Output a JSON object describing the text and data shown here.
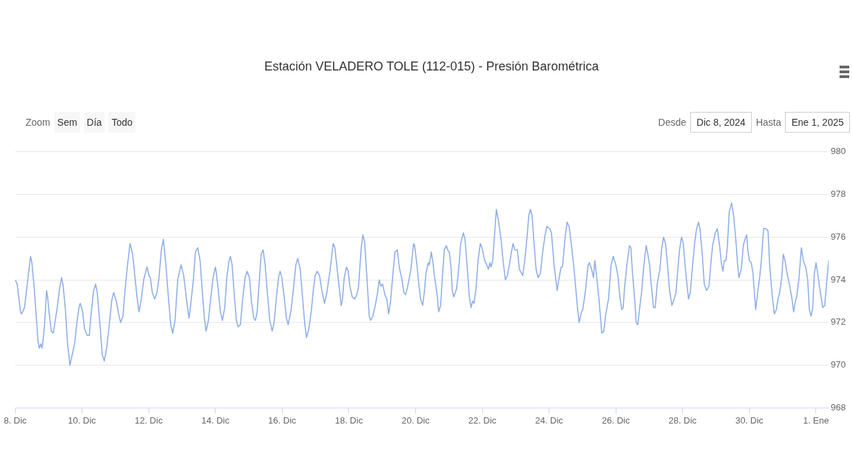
{
  "chart_data": {
    "type": "line",
    "title": "Estación VELADERO TOLE (112-015) - Presión Barométrica",
    "annotations": [
      "Zoom",
      "Sem",
      "Día",
      "Todo",
      "Desde",
      "Dic 8, 2024",
      "Hasta",
      "Ene 1, 2025"
    ],
    "color": "#8eaee8",
    "marker": "none",
    "grid": "y",
    "xlim": [
      "2024-12-08T00:00",
      "2025-01-01T09:07"
    ],
    "xticks": [
      {
        "value": "2024-12-08",
        "label": "8. Dic"
      },
      {
        "value": "2024-12-10",
        "label": "10. Dic"
      },
      {
        "value": "2024-12-12",
        "label": "12. Dic"
      },
      {
        "value": "2024-12-14",
        "label": "14. Dic"
      },
      {
        "value": "2024-12-16",
        "label": "16. Dic"
      },
      {
        "value": "2024-12-18",
        "label": "18. Dic"
      },
      {
        "value": "2024-12-20",
        "label": "20. Dic"
      },
      {
        "value": "2024-12-22",
        "label": "22. Dic"
      },
      {
        "value": "2024-12-24",
        "label": "24. Dic"
      },
      {
        "value": "2024-12-26",
        "label": "26. Dic"
      },
      {
        "value": "2024-12-28",
        "label": "28. Dic"
      },
      {
        "value": "2024-12-30",
        "label": "30. Dic"
      },
      {
        "value": "2025-01-01",
        "label": "1. Ene"
      }
    ],
    "ylim": [
      968,
      980
    ],
    "yticks": [
      968,
      970,
      972,
      974,
      976,
      978,
      980
    ],
    "x": [
      "2024-12-08T00:00",
      "2024-12-08T01:26",
      "2024-12-08T03:50",
      "2024-12-08T04:34",
      "2024-12-08T06:43",
      "2024-12-08T08:10",
      "2024-12-08T11:02",
      "2024-12-08T12:00",
      "2024-12-08T13:41",
      "2024-12-08T15:22",
      "2024-12-08T16:19",
      "2024-12-08T17:17",
      "2024-12-08T18:29",
      "2024-12-08T19:12",
      "2024-12-08T19:55",
      "2024-12-08T21:07",
      "2024-12-08T22:34",
      "2024-12-08T23:17",
      "2024-12-09T00:29",
      "2024-12-09T01:55",
      "2024-12-09T03:22",
      "2024-12-09T04:34",
      "2024-12-09T06:14",
      "2024-12-09T07:55",
      "2024-12-09T09:22",
      "2024-12-09T10:19",
      "2024-12-09T12:00",
      "2024-12-09T13:41",
      "2024-12-09T15:22",
      "2024-12-09T17:02",
      "2024-12-09T18:43",
      "2024-12-09T20:24",
      "2024-12-09T22:05",
      "2024-12-09T22:48",
      "2024-12-10T00:29",
      "2024-12-10T01:55",
      "2024-12-10T03:36",
      "2024-12-10T05:17",
      "2024-12-10T06:43",
      "2024-12-10T08:24",
      "2024-12-10T09:50",
      "2024-12-10T11:02",
      "2024-12-10T12:58",
      "2024-12-10T14:38",
      "2024-12-10T16:05",
      "2024-12-10T17:46",
      "2024-12-10T19:41",
      "2024-12-10T21:22",
      "2024-12-10T22:48",
      "2024-12-11T00:43",
      "2024-12-11T02:24",
      "2024-12-11T03:50",
      "2024-12-11T05:31",
      "2024-12-11T06:58",
      "2024-12-11T08:38",
      "2024-12-11T10:34",
      "2024-12-11T12:29",
      "2024-12-11T14:10",
      "2024-12-11T15:36",
      "2024-12-11T17:02",
      "2024-12-11T18:43",
      "2024-12-11T20:24",
      "2024-12-11T22:48",
      "2024-12-12T00:14",
      "2024-12-12T01:12",
      "2024-12-12T02:38",
      "2024-12-12T04:19",
      "2024-12-12T06:00",
      "2024-12-12T07:26",
      "2024-12-12T09:07",
      "2024-12-12T10:34",
      "2024-12-12T12:14",
      "2024-12-12T13:55",
      "2024-12-12T15:50",
      "2024-12-12T17:17",
      "2024-12-12T18:58",
      "2024-12-12T20:53",
      "2024-12-12T23:17",
      "2024-12-13T01:12",
      "2024-12-13T03:22",
      "2024-12-13T05:02",
      "2024-12-13T06:29",
      "2024-12-13T08:10",
      "2024-12-13T09:36",
      "2024-12-13T11:17",
      "2024-12-13T12:58",
      "2024-12-13T14:24",
      "2024-12-13T16:05",
      "2024-12-13T17:17",
      "2024-12-13T18:58",
      "2024-12-13T20:24",
      "2024-12-13T22:19",
      "2024-12-14T00:00",
      "2024-12-14T00:29",
      "2024-12-14T01:55",
      "2024-12-14T03:36",
      "2024-12-14T05:02",
      "2024-12-14T06:43",
      "2024-12-14T08:10",
      "2024-12-14T09:50",
      "2024-12-14T10:48",
      "2024-12-14T12:00",
      "2024-12-14T13:41",
      "2024-12-14T15:07",
      "2024-12-14T16:19",
      "2024-12-14T18:00",
      "2024-12-14T19:26",
      "2024-12-14T21:22",
      "2024-12-14T22:48",
      "2024-12-15T00:29",
      "2024-12-15T01:55",
      "2024-12-15T03:36",
      "2024-12-15T04:48",
      "2024-12-15T06:00",
      "2024-12-15T07:26",
      "2024-12-15T08:53",
      "2024-12-15T10:19",
      "2024-12-15T11:46",
      "2024-12-15T13:12",
      "2024-12-15T15:07",
      "2024-12-15T16:48",
      "2024-12-15T18:14",
      "2024-12-15T19:55",
      "2024-12-15T21:22",
      "2024-12-15T22:34",
      "2024-12-15T23:46",
      "2024-12-16T01:26",
      "2024-12-16T03:07",
      "2024-12-16T04:19",
      "2024-12-16T06:29",
      "2024-12-16T08:10",
      "2024-12-16T09:50",
      "2024-12-16T11:17",
      "2024-12-16T12:58",
      "2024-12-16T14:38",
      "2024-12-16T16:19",
      "2024-12-16T17:31",
      "2024-12-16T19:12",
      "2024-12-16T20:53",
      "2024-12-16T22:34",
      "2024-12-16T23:46",
      "2024-12-17T01:12",
      "2024-12-17T02:53",
      "2024-12-17T04:34",
      "2024-12-17T06:29",
      "2024-12-17T08:10",
      "2024-12-17T10:34",
      "2024-12-17T12:43",
      "2024-12-17T13:55",
      "2024-12-17T15:36",
      "2024-12-17T17:17",
      "2024-12-17T18:29",
      "2024-12-17T19:26",
      "2024-12-17T20:38",
      "2024-12-17T22:19",
      "2024-12-17T23:31",
      "2024-12-18T00:43",
      "2024-12-18T02:24",
      "2024-12-18T04:05",
      "2024-12-18T05:46",
      "2024-12-18T06:58",
      "2024-12-18T08:53",
      "2024-12-18T10:05",
      "2024-12-18T11:17",
      "2024-12-18T12:58",
      "2024-12-18T14:38",
      "2024-12-18T15:36",
      "2024-12-18T17:17",
      "2024-12-18T18:58",
      "2024-12-18T20:38",
      "2024-12-18T21:50",
      "2024-12-18T23:02",
      "2024-12-19T00:14",
      "2024-12-19T01:55",
      "2024-12-19T03:22",
      "2024-12-19T04:34",
      "2024-12-19T06:00",
      "2024-12-19T07:26",
      "2024-12-19T09:07",
      "2024-12-19T10:48",
      "2024-12-19T12:29",
      "2024-12-19T13:55",
      "2024-12-19T15:36",
      "2024-12-19T16:48",
      "2024-12-19T18:00",
      "2024-12-19T20:38",
      "2024-12-19T22:34",
      "2024-12-19T23:17",
      "2024-12-20T00:58",
      "2024-12-20T01:55",
      "2024-12-20T03:36",
      "2024-12-20T05:02",
      "2024-12-20T06:14",
      "2024-12-20T07:26",
      "2024-12-20T09:07",
      "2024-12-20T09:50",
      "2024-12-20T11:17",
      "2024-12-20T12:29",
      "2024-12-20T13:26",
      "2024-12-20T14:24",
      "2024-12-20T15:36",
      "2024-12-20T16:34",
      "2024-12-20T18:00",
      "2024-12-20T19:12",
      "2024-12-20T20:38",
      "2024-12-20T22:05",
      "2024-12-20T23:02",
      "2024-12-21T00:14",
      "2024-12-21T01:26",
      "2024-12-21T02:24",
      "2024-12-21T03:22",
      "2024-12-21T04:34",
      "2024-12-21T05:31",
      "2024-12-21T06:58",
      "2024-12-21T08:24",
      "2024-12-21T10:19",
      "2024-12-21T11:31",
      "2024-12-21T13:12",
      "2024-12-21T14:38",
      "2024-12-21T15:50",
      "2024-12-21T17:02",
      "2024-12-21T18:00",
      "2024-12-21T19:26",
      "2024-12-21T20:53",
      "2024-12-21T22:34",
      "2024-12-21T23:46",
      "2024-12-22T01:41",
      "2024-12-22T03:07",
      "2024-12-22T04:19",
      "2024-12-22T05:31",
      "2024-12-22T06:14",
      "2024-12-22T07:26",
      "2024-12-22T08:38",
      "2024-12-22T10:05",
      "2024-12-22T11:46",
      "2024-12-22T13:26",
      "2024-12-22T14:53",
      "2024-12-22T16:34",
      "2024-12-22T18:00",
      "2024-12-22T19:41",
      "2024-12-22T20:38",
      "2024-12-22T22:05",
      "2024-12-22T23:17",
      "2024-12-23T01:12",
      "2024-12-23T02:38",
      "2024-12-23T05:02",
      "2024-12-23T06:29",
      "2024-12-23T08:10",
      "2024-12-23T09:22",
      "2024-12-23T10:34",
      "2024-12-23T11:46",
      "2024-12-23T12:58",
      "2024-12-23T14:38",
      "2024-12-23T16:05",
      "2024-12-23T17:46",
      "2024-12-23T19:12",
      "2024-12-23T20:53",
      "2024-12-23T22:19",
      "2024-12-24T00:29",
      "2024-12-24T01:41",
      "2024-12-24T03:36",
      "2024-12-24T05:46",
      "2024-12-24T06:58",
      "2024-12-24T08:38",
      "2024-12-24T09:36",
      "2024-12-24T11:31",
      "2024-12-24T12:58",
      "2024-12-24T14:24",
      "2024-12-24T16:19",
      "2024-12-24T18:14",
      "2024-12-24T20:24",
      "2024-12-24T21:36",
      "2024-12-24T23:17",
      "2024-12-25T00:14",
      "2024-12-25T02:10",
      "2024-12-25T04:05",
      "2024-12-25T05:02",
      "2024-12-25T06:58",
      "2024-12-25T07:55",
      "2024-12-25T08:53",
      "2024-12-25T10:19",
      "2024-12-25T12:00",
      "2024-12-25T13:55",
      "2024-12-25T15:22",
      "2024-12-25T16:48",
      "2024-12-25T18:43",
      "2024-12-25T20:38",
      "2024-12-25T22:05",
      "2024-12-26T00:00",
      "2024-12-26T01:41",
      "2024-12-26T02:53",
      "2024-12-26T04:19",
      "2024-12-26T05:17",
      "2024-12-26T06:14",
      "2024-12-26T07:55",
      "2024-12-26T09:50",
      "2024-12-26T10:48",
      "2024-12-26T12:00",
      "2024-12-26T13:41",
      "2024-12-26T14:38",
      "2024-12-26T15:50",
      "2024-12-26T16:48",
      "2024-12-26T18:29",
      "2024-12-26T20:10",
      "2024-12-26T21:50",
      "2024-12-26T23:02",
      "2024-12-27T00:14",
      "2024-12-27T01:26",
      "2024-12-27T03:07",
      "2024-12-27T04:19",
      "2024-12-27T05:46",
      "2024-12-27T07:41",
      "2024-12-27T08:53",
      "2024-12-27T10:19",
      "2024-12-27T11:46",
      "2024-12-27T13:26",
      "2024-12-27T14:38",
      "2024-12-27T16:19",
      "2024-12-27T17:31",
      "2024-12-27T19:12",
      "2024-12-27T20:38",
      "2024-12-27T21:50",
      "2024-12-27T23:17",
      "2024-12-28T00:29",
      "2024-12-28T01:55",
      "2024-12-28T03:07",
      "2024-12-28T04:19",
      "2024-12-28T05:31",
      "2024-12-28T06:58",
      "2024-12-28T08:38",
      "2024-12-28T10:05",
      "2024-12-28T11:31",
      "2024-12-28T12:29",
      "2024-12-28T14:10",
      "2024-12-28T15:36",
      "2024-12-28T17:17",
      "2024-12-28T18:58",
      "2024-12-28T20:24",
      "2024-12-28T21:36",
      "2024-12-28T23:31",
      "2024-12-29T00:58",
      "2024-12-29T02:38",
      "2024-12-29T04:05",
      "2024-12-29T05:02",
      "2024-12-29T06:00",
      "2024-12-29T07:12",
      "2024-12-29T08:10",
      "2024-12-29T09:36",
      "2024-12-29T11:17",
      "2024-12-29T12:43",
      "2024-12-29T14:24",
      "2024-12-29T15:36",
      "2024-12-29T16:34",
      "2024-12-29T18:14",
      "2024-12-29T19:41",
      "2024-12-29T20:53",
      "2024-12-29T22:05",
      "2024-12-29T22:48",
      "2024-12-30T00:00",
      "2024-12-30T01:26",
      "2024-12-30T02:38",
      "2024-12-30T04:34",
      "2024-12-30T06:00",
      "2024-12-30T07:26",
      "2024-12-30T08:38",
      "2024-12-30T10:19",
      "2024-12-30T11:46",
      "2024-12-30T13:26",
      "2024-12-30T14:38",
      "2024-12-30T16:34",
      "2024-12-30T18:00",
      "2024-12-30T19:26",
      "2024-12-30T20:38",
      "2024-12-30T21:50",
      "2024-12-30T23:17",
      "2024-12-31T00:29",
      "2024-12-31T01:41",
      "2024-12-31T03:07",
      "2024-12-31T04:48",
      "2024-12-31T06:29",
      "2024-12-31T07:55",
      "2024-12-31T09:07",
      "2024-12-31T10:05",
      "2024-12-31T11:46",
      "2024-12-31T13:26",
      "2024-12-31T14:53",
      "2024-12-31T16:34",
      "2024-12-31T18:00",
      "2024-12-31T19:12",
      "2024-12-31T20:24",
      "2024-12-31T21:36",
      "2024-12-31T22:48",
      "2025-01-01T00:00",
      "2025-01-01T01:26",
      "2025-01-01T03:07",
      "2025-01-01T04:48",
      "2025-01-01T06:14",
      "2025-01-01T07:55",
      "2025-01-01T09:07"
    ],
    "values": [
      974.0,
      973.8,
      972.5,
      972.4,
      972.7,
      973.5,
      975.1,
      974.8,
      973.6,
      972.1,
      971.2,
      970.8,
      971.0,
      970.8,
      971.1,
      971.9,
      973.5,
      973.2,
      972.4,
      971.6,
      971.5,
      972.0,
      972.7,
      973.6,
      974.1,
      973.8,
      972.7,
      971.0,
      970.0,
      970.5,
      971.0,
      972.0,
      972.8,
      972.9,
      972.5,
      971.7,
      971.4,
      971.4,
      972.5,
      973.5,
      973.8,
      973.4,
      971.9,
      970.5,
      970.2,
      970.8,
      971.9,
      973.0,
      973.4,
      973.0,
      972.4,
      972.0,
      972.3,
      973.5,
      974.6,
      975.7,
      975.2,
      974.1,
      973.2,
      972.5,
      973.1,
      974.0,
      974.6,
      974.2,
      974.1,
      973.4,
      973.1,
      973.4,
      974.1,
      975.4,
      975.9,
      974.8,
      973.4,
      971.9,
      971.5,
      972.1,
      974.0,
      974.7,
      974.2,
      973.0,
      972.2,
      973.0,
      974.0,
      975.3,
      975.5,
      974.9,
      973.6,
      972.2,
      971.6,
      972.1,
      973.0,
      974.1,
      974.6,
      974.4,
      973.6,
      972.5,
      972.1,
      972.7,
      974.1,
      974.9,
      975.1,
      974.7,
      973.2,
      972.1,
      971.8,
      971.9,
      973.0,
      974.1,
      974.4,
      974.1,
      973.0,
      972.2,
      972.1,
      972.5,
      973.8,
      975.2,
      975.4,
      974.7,
      973.5,
      972.1,
      971.6,
      972.0,
      973.2,
      974.1,
      974.4,
      974.1,
      973.2,
      972.2,
      971.9,
      972.6,
      973.6,
      974.7,
      975.0,
      974.5,
      973.2,
      971.9,
      971.3,
      971.7,
      972.5,
      973.6,
      974.2,
      974.4,
      974.2,
      973.5,
      972.9,
      973.4,
      974.5,
      975.7,
      975.5,
      974.5,
      973.5,
      972.8,
      973.1,
      974.1,
      974.6,
      974.4,
      973.7,
      973.2,
      973.1,
      973.3,
      973.7,
      975.5,
      976.1,
      975.8,
      974.1,
      972.3,
      972.1,
      972.3,
      972.8,
      973.4,
      974.0,
      973.7,
      973.8,
      973.3,
      973.1,
      972.4,
      973.0,
      974.1,
      975.3,
      975.4,
      974.5,
      974.1,
      973.4,
      973.3,
      973.6,
      974.5,
      975.7,
      975.6,
      974.7,
      974.0,
      973.1,
      972.8,
      973.4,
      974.3,
      974.8,
      974.7,
      975.3,
      974.8,
      974.2,
      973.8,
      973.2,
      972.5,
      972.8,
      974.1,
      975.4,
      975.6,
      975.4,
      975.3,
      974.6,
      973.5,
      973.2,
      973.4,
      973.6,
      974.5,
      975.7,
      976.2,
      975.9,
      974.5,
      973.2,
      972.7,
      973.0,
      972.9,
      973.6,
      974.9,
      975.7,
      975.5,
      974.9,
      974.7,
      974.5,
      974.8,
      974.6,
      974.9,
      976.0,
      977.3,
      976.7,
      975.9,
      974.9,
      974.0,
      974.2,
      974.8,
      975.2,
      975.7,
      975.4,
      975.4,
      974.5,
      974.2,
      974.9,
      976.0,
      977.0,
      977.3,
      977.0,
      975.9,
      974.5,
      974.1,
      974.3,
      975.2,
      976.0,
      976.5,
      976.4,
      976.2,
      974.7,
      973.5,
      974.0,
      974.6,
      974.6,
      976.0,
      976.7,
      976.5,
      975.5,
      974.3,
      972.7,
      972.0,
      972.5,
      972.6,
      973.5,
      974.7,
      974.8,
      974.4,
      974.1,
      974.9,
      974.1,
      973.0,
      971.5,
      971.6,
      972.4,
      973.1,
      974.7,
      975.1,
      974.7,
      974.1,
      973.2,
      972.6,
      972.7,
      973.6,
      974.7,
      975.6,
      975.5,
      974.3,
      973.0,
      972.0,
      971.9,
      972.5,
      973.4,
      974.7,
      975.6,
      975.2,
      974.7,
      973.8,
      972.7,
      972.7,
      973.8,
      974.5,
      975.4,
      976.0,
      975.7,
      974.5,
      973.5,
      972.8,
      973.0,
      973.4,
      974.5,
      975.4,
      976.0,
      975.7,
      974.6,
      973.8,
      973.1,
      973.4,
      974.5,
      975.7,
      976.4,
      976.7,
      976.4,
      975.2,
      973.8,
      973.5,
      973.7,
      974.8,
      975.6,
      976.2,
      976.4,
      975.6,
      974.7,
      974.4,
      974.9,
      974.9,
      975.5,
      977.2,
      977.6,
      977.0,
      975.8,
      974.7,
      974.1,
      974.5,
      975.6,
      975.9,
      976.1,
      975.5,
      974.9,
      974.8,
      974.3,
      972.6,
      973.4,
      974.1,
      974.9,
      976.4,
      976.4,
      976.3,
      974.7,
      973.2,
      972.4,
      972.6,
      973.1,
      973.4,
      974.1,
      975.2,
      974.9,
      974.3,
      973.8,
      973.2,
      972.5,
      973.0,
      973.2,
      974.1,
      975.5,
      974.9,
      974.6,
      974.0,
      972.6,
      972.3,
      972.7,
      974.3,
      974.8,
      974.2,
      973.4,
      972.7,
      972.8,
      974.1,
      974.9
    ]
  }
}
